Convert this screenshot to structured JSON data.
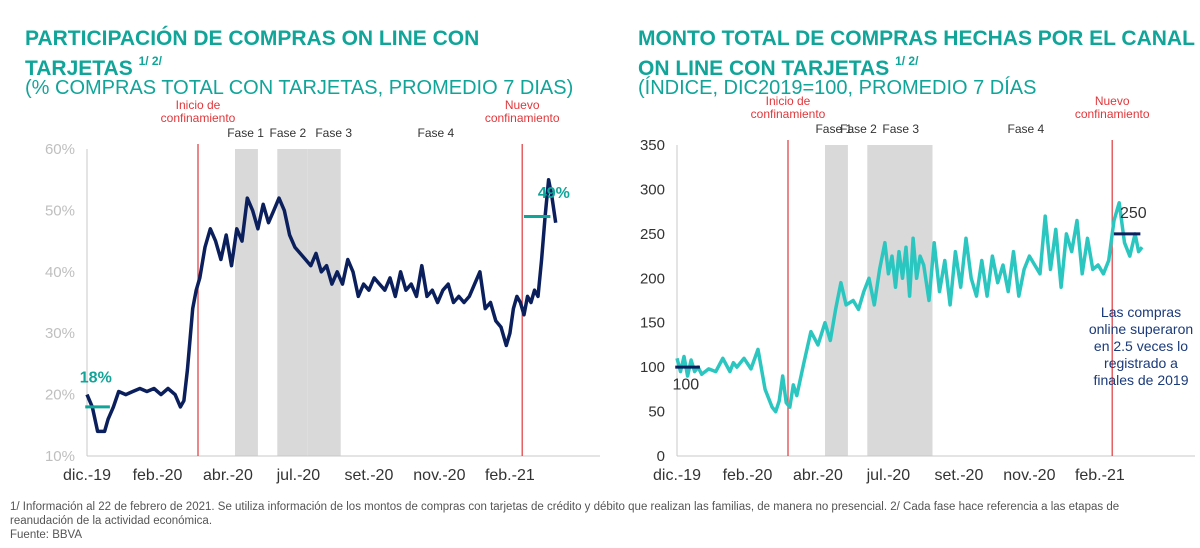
{
  "left_panel": {
    "title": "PARTICIPACIÓN DE COMPRAS ON LINE CON TARJETAS",
    "title_sup": "1/ 2/",
    "subtitle": "(% COMPRAS TOTAL CON TARJETAS, PROMEDIO 7 DIAS)"
  },
  "right_panel": {
    "title": "MONTO TOTAL DE COMPRAS HECHAS POR EL CANAL ON LINE CON TARJETAS",
    "title_sup": "1/ 2/",
    "subtitle": "(ÍNDICE, DIC2019=100, PROMEDIO 7 DÍAS"
  },
  "footnote": "1/ Información al 22 de febrero de 2021. Se utiliza información de los montos de compras con tarjetas de crédito y débito que realizan las familias, de manera no presencial. 2/ Cada fase hace referencia a las etapas de reanudación de la actividad económica.",
  "source": "Fuente: BBVA",
  "colors": {
    "teal": "#11a59a",
    "navy": "#0a1f5c",
    "line2": "#2cc6c0",
    "red": "#e0373b",
    "band": "#d9d9d9",
    "axis": "#c8c8c8"
  },
  "chart_data": [
    {
      "type": "line",
      "title": "PARTICIPACIÓN DE COMPRAS ON LINE CON TARJETAS",
      "ylim": [
        10,
        60
      ],
      "yticks": [
        10,
        20,
        30,
        40,
        50,
        60
      ],
      "ytick_labels": [
        "10%",
        "20%",
        "30%",
        "40%",
        "50%",
        "60%"
      ],
      "xlim": [
        0,
        14.7
      ],
      "xticks": [
        0,
        2,
        4,
        6,
        8,
        10,
        12
      ],
      "xtick_labels": [
        "dic.-19",
        "feb.-20",
        "abr.-20",
        "jul.-20",
        "set.-20",
        "nov.-20",
        "feb.-21"
      ],
      "series": [
        {
          "name": "Participación",
          "color": "#0a1f5c",
          "x": [
            0,
            0.15,
            0.3,
            0.5,
            0.6,
            0.75,
            0.9,
            1.1,
            1.3,
            1.5,
            1.7,
            1.9,
            2.1,
            2.3,
            2.5,
            2.65,
            2.75,
            2.85,
            3.0,
            3.1,
            3.2,
            3.35,
            3.5,
            3.65,
            3.8,
            3.95,
            4.1,
            4.25,
            4.4,
            4.55,
            4.7,
            4.85,
            5.0,
            5.15,
            5.3,
            5.45,
            5.6,
            5.75,
            5.9,
            6.05,
            6.2,
            6.35,
            6.5,
            6.65,
            6.8,
            6.95,
            7.1,
            7.25,
            7.4,
            7.55,
            7.7,
            7.85,
            8.0,
            8.15,
            8.3,
            8.45,
            8.6,
            8.75,
            8.9,
            9.05,
            9.2,
            9.35,
            9.5,
            9.65,
            9.8,
            9.95,
            10.1,
            10.25,
            10.4,
            10.55,
            10.7,
            10.85,
            11.0,
            11.15,
            11.3,
            11.45,
            11.6,
            11.75,
            11.9,
            12.0,
            12.1,
            12.2,
            12.3,
            12.4,
            12.5,
            12.6,
            12.7,
            12.8,
            12.9,
            13.0,
            13.1,
            13.2,
            13.3
          ],
          "values": [
            20,
            18,
            14,
            14,
            16,
            18,
            20.5,
            20,
            20.5,
            21,
            20.5,
            21,
            20,
            21,
            20,
            18,
            19,
            24,
            34,
            37,
            39,
            44,
            47,
            45,
            42,
            46,
            41,
            47,
            45,
            52,
            50,
            47,
            51,
            48,
            50,
            52,
            50,
            46,
            44,
            43,
            42,
            41,
            43,
            40,
            41,
            38,
            40,
            38,
            42,
            40,
            36,
            38,
            37,
            39,
            38,
            37,
            39,
            36,
            40,
            37,
            38,
            36,
            41,
            36,
            37,
            35,
            37,
            38,
            35,
            36,
            35,
            36,
            38,
            40,
            34,
            35,
            32,
            31,
            28,
            30,
            34,
            36,
            35,
            33,
            36,
            35,
            37,
            36,
            42,
            49,
            55,
            52,
            48
          ]
        }
      ],
      "bands": [
        {
          "label": "Fase 1",
          "x0": 4.2,
          "x1": 4.85
        },
        {
          "label": "Fase 2",
          "x0": 5.4,
          "x1": 6.25
        },
        {
          "label": "Fase 3",
          "x0": 6.25,
          "x1": 7.2
        }
      ],
      "band_labels": [
        {
          "label": "Fase 1",
          "x": 4.5
        },
        {
          "label": "Fase 2",
          "x": 5.7
        },
        {
          "label": "Fase 3",
          "x": 7.0
        },
        {
          "label": "Fase 4",
          "x": 9.9
        }
      ],
      "vlines": [
        {
          "x": 3.15,
          "label": [
            "Inicio de",
            "confinamiento"
          ]
        },
        {
          "x": 12.35,
          "label": [
            "Nuevo",
            "confinamiento"
          ]
        }
      ],
      "markers": [
        {
          "x0": -0.05,
          "x1": 0.65,
          "y": 18,
          "label": "18%",
          "label_x": 0.25,
          "label_y": 22
        },
        {
          "x0": 12.4,
          "x1": 13.15,
          "y": 49,
          "label": "49%",
          "label_x": 13.25,
          "label_y": 52
        }
      ]
    },
    {
      "type": "line",
      "title": "MONTO TOTAL DE COMPRAS HECHAS POR EL CANAL ON LINE CON TARJETAS",
      "ylim": [
        0,
        350
      ],
      "yticks": [
        0,
        50,
        100,
        150,
        200,
        250,
        300,
        350
      ],
      "ytick_labels": [
        "0",
        "50",
        "100",
        "150",
        "200",
        "250",
        "300",
        "350"
      ],
      "xlim": [
        0,
        14.7
      ],
      "xticks": [
        0,
        2,
        4,
        6,
        8,
        10,
        12
      ],
      "xtick_labels": [
        "dic.-19",
        "feb.-20",
        "abr.-20",
        "jul.-20",
        "set.-20",
        "nov.-20",
        "feb.-21"
      ],
      "series": [
        {
          "name": "Monto",
          "color": "#2cc6c0",
          "x": [
            0,
            0.1,
            0.2,
            0.3,
            0.4,
            0.5,
            0.6,
            0.7,
            0.9,
            1.1,
            1.3,
            1.5,
            1.6,
            1.7,
            1.9,
            2.1,
            2.3,
            2.5,
            2.7,
            2.8,
            2.9,
            3.0,
            3.1,
            3.2,
            3.3,
            3.4,
            3.6,
            3.8,
            4.0,
            4.2,
            4.35,
            4.5,
            4.65,
            4.8,
            5.0,
            5.15,
            5.3,
            5.45,
            5.6,
            5.75,
            5.9,
            6.0,
            6.1,
            6.2,
            6.3,
            6.4,
            6.5,
            6.6,
            6.7,
            6.8,
            6.9,
            7.0,
            7.15,
            7.3,
            7.45,
            7.6,
            7.75,
            7.9,
            8.05,
            8.2,
            8.35,
            8.5,
            8.65,
            8.8,
            8.95,
            9.1,
            9.25,
            9.4,
            9.55,
            9.7,
            9.85,
            10.0,
            10.15,
            10.3,
            10.45,
            10.6,
            10.75,
            10.9,
            11.05,
            11.2,
            11.35,
            11.5,
            11.65,
            11.8,
            11.95,
            12.1,
            12.25,
            12.4,
            12.55,
            12.7,
            12.85,
            13.0,
            13.1,
            13.2
          ],
          "values": [
            110,
            95,
            112,
            90,
            108,
            95,
            100,
            92,
            98,
            95,
            110,
            95,
            105,
            100,
            110,
            98,
            120,
            75,
            55,
            50,
            62,
            90,
            60,
            55,
            80,
            68,
            105,
            140,
            125,
            150,
            130,
            165,
            195,
            170,
            175,
            165,
            185,
            200,
            170,
            210,
            240,
            205,
            225,
            190,
            230,
            200,
            235,
            180,
            245,
            200,
            225,
            215,
            175,
            240,
            185,
            220,
            170,
            230,
            190,
            245,
            200,
            180,
            220,
            180,
            225,
            195,
            215,
            185,
            230,
            180,
            210,
            225,
            215,
            205,
            270,
            210,
            255,
            190,
            250,
            230,
            265,
            205,
            245,
            210,
            215,
            205,
            220,
            265,
            285,
            240,
            225,
            250,
            230,
            235
          ]
        }
      ],
      "bands": [
        {
          "label": "Fase 1",
          "x0": 4.2,
          "x1": 4.85
        },
        {
          "label": "Fase 3",
          "x0": 5.4,
          "x1": 7.25
        }
      ],
      "band_labels": [
        {
          "label": "Fase 1",
          "x": 4.45
        },
        {
          "label": "Fase 2",
          "x": 5.15
        },
        {
          "label": "Fase 3",
          "x": 6.35
        },
        {
          "label": "Fase 4",
          "x": 9.9
        }
      ],
      "vlines": [
        {
          "x": 3.15,
          "label": [
            "Inicio de",
            "confinamiento"
          ]
        },
        {
          "x": 12.35,
          "label": [
            "Nuevo",
            "confinamiento"
          ]
        }
      ],
      "markers": [
        {
          "x0": -0.05,
          "x1": 0.65,
          "y": 100,
          "label": "100",
          "label_x": 0.25,
          "label_y": 75
        },
        {
          "x0": 12.4,
          "x1": 13.15,
          "y": 250,
          "label": "250",
          "label_x": 12.95,
          "label_y": 268
        }
      ],
      "annotation": [
        "Las compras",
        "online superaron",
        "en 2.5 veces lo",
        "registrado a",
        "finales de 2019"
      ]
    }
  ]
}
